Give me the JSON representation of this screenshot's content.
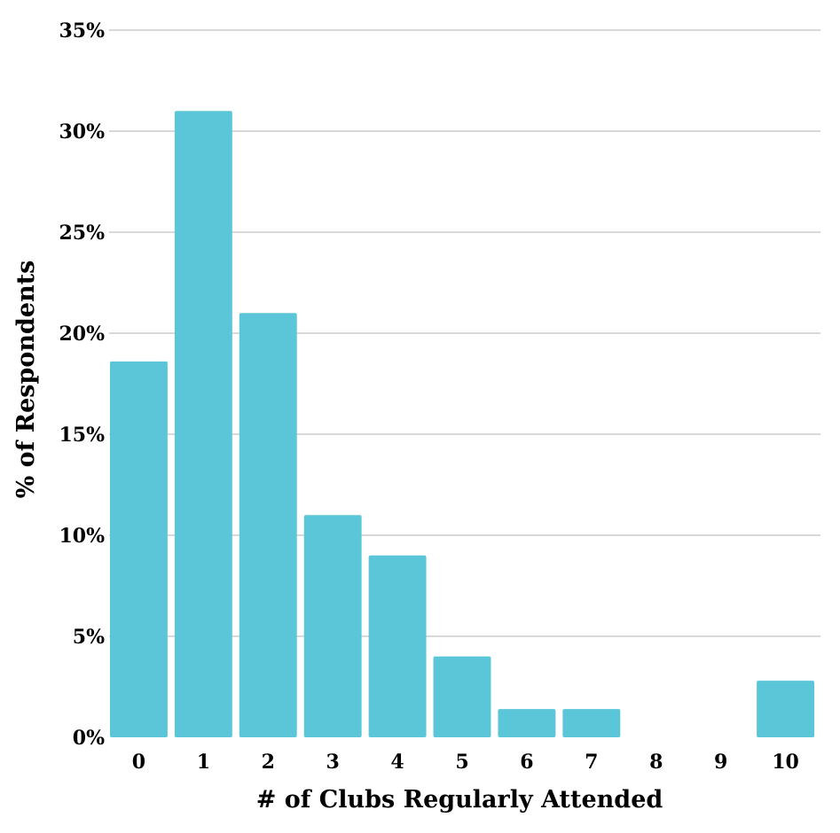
{
  "chart_data": {
    "type": "bar",
    "title": "",
    "xlabel": "# of Clubs Regularly Attended",
    "ylabel": "% of Respondents",
    "categories": [
      "0",
      "1",
      "2",
      "3",
      "4",
      "5",
      "6",
      "7",
      "8",
      "9",
      "10"
    ],
    "values": [
      18.6,
      31.0,
      21.0,
      11.0,
      9.0,
      4.0,
      1.4,
      1.4,
      0,
      0,
      2.8
    ],
    "ylim": [
      0,
      35
    ],
    "yticks": [
      0,
      5,
      10,
      15,
      20,
      25,
      30,
      35
    ],
    "ytick_labels": [
      "0%",
      "5%",
      "10%",
      "15%",
      "20%",
      "25%",
      "30%",
      "35%"
    ],
    "grid": true,
    "bar_color": "#5bc6d7",
    "grid_color": "#d9d9d9"
  }
}
